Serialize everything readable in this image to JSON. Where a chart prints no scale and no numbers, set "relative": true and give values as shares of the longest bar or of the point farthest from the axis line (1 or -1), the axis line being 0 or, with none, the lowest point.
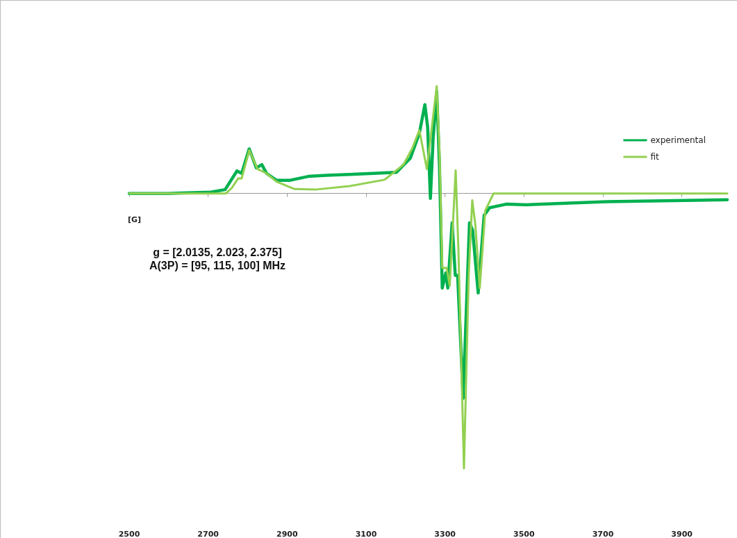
{
  "chart_data": {
    "type": "line",
    "relative": true,
    "xlabel": "[G]",
    "xlim": [
      2500,
      4015
    ],
    "xticks": [
      2500,
      2700,
      2900,
      3100,
      3300,
      3500,
      3700,
      3900
    ],
    "grid": false,
    "legend": "top right",
    "marker": "none",
    "line_style": "solid",
    "annotations": [
      "g = [2.0135, 2.023, 2.375]",
      "A(3P) = [95, 115, 100] MHz"
    ],
    "series": [
      {
        "name": "experimental",
        "color": "#00b050",
        "x": [
          2500,
          2600,
          2707,
          2743,
          2773,
          2785,
          2804,
          2822,
          2836,
          2848,
          2873,
          2908,
          2954,
          3001,
          3089,
          3177,
          3212,
          3235,
          3249,
          3256,
          3263,
          3270,
          3279,
          3286,
          3293,
          3302,
          3307,
          3318,
          3326,
          3332,
          3346,
          3362,
          3370,
          3384,
          3399,
          3413,
          3455,
          3506,
          3710,
          4015
        ],
        "values": [
          0,
          0,
          0.005,
          0.014,
          0.082,
          0.073,
          0.162,
          0.093,
          0.105,
          0.073,
          0.048,
          0.048,
          0.062,
          0.066,
          0.071,
          0.077,
          0.128,
          0.219,
          0.323,
          0.241,
          -0.018,
          0.203,
          0.37,
          0.1,
          -0.344,
          -0.289,
          -0.344,
          -0.107,
          -0.298,
          -0.298,
          -0.745,
          -0.107,
          -0.134,
          -0.362,
          -0.08,
          -0.052,
          -0.039,
          -0.041,
          -0.03,
          -0.023
        ]
      },
      {
        "name": "fit",
        "color": "#92d050",
        "x": [
          2500,
          2600,
          2745,
          2760,
          2776,
          2785,
          2804,
          2825,
          2848,
          2873,
          2919,
          2971,
          3059,
          3147,
          3195,
          3217,
          3235,
          3254,
          3279,
          3286,
          3293,
          3304,
          3312,
          3327,
          3334,
          3348,
          3360,
          3369,
          3377,
          3388,
          3402,
          3423,
          3500,
          4015
        ],
        "values": [
          0,
          0,
          0,
          0.02,
          0.055,
          0.055,
          0.157,
          0.089,
          0.073,
          0.043,
          0.016,
          0.014,
          0.027,
          0.05,
          0.105,
          0.164,
          0.23,
          0.089,
          0.39,
          0.157,
          -0.271,
          -0.271,
          -0.335,
          0.084,
          -0.207,
          -1,
          -0.298,
          -0.025,
          -0.116,
          -0.344,
          -0.062,
          0,
          0,
          0
        ]
      }
    ]
  }
}
